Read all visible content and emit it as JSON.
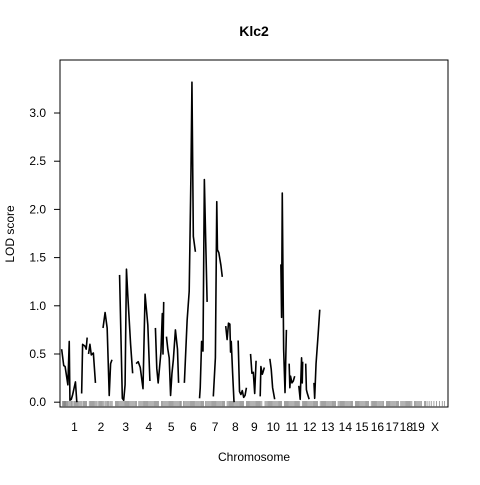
{
  "chart_data": {
    "type": "line",
    "title": "Klc2",
    "xlabel": "Chromosome",
    "ylabel": "LOD score",
    "ylim": [
      -0.05,
      3.55
    ],
    "grid": false,
    "y_ticks": [
      {
        "value": 0.0,
        "label": "0.0"
      },
      {
        "value": 0.5,
        "label": "0.5"
      },
      {
        "value": 1.0,
        "label": "1.0"
      },
      {
        "value": 1.5,
        "label": "1.5"
      },
      {
        "value": 2.0,
        "label": "2.0"
      },
      {
        "value": 2.5,
        "label": "2.5"
      },
      {
        "value": 3.0,
        "label": "3.0"
      }
    ],
    "chromosomes": [
      {
        "name": "1",
        "start": 0,
        "end": 185,
        "label": "1"
      },
      {
        "name": "2",
        "start": 195,
        "end": 375,
        "label": "2"
      },
      {
        "name": "3",
        "start": 385,
        "end": 545,
        "label": "3"
      },
      {
        "name": "4",
        "start": 555,
        "end": 710,
        "label": "4"
      },
      {
        "name": "5",
        "start": 720,
        "end": 870,
        "label": "5"
      },
      {
        "name": "6",
        "start": 880,
        "end": 1030,
        "label": "6"
      },
      {
        "name": "7",
        "start": 1040,
        "end": 1185,
        "label": "7"
      },
      {
        "name": "8",
        "start": 1195,
        "end": 1325,
        "label": "8"
      },
      {
        "name": "9",
        "start": 1335,
        "end": 1460,
        "label": "9"
      },
      {
        "name": "10",
        "start": 1470,
        "end": 1600,
        "label": "10"
      },
      {
        "name": "11",
        "start": 1610,
        "end": 1730,
        "label": "11"
      },
      {
        "name": "12",
        "start": 1740,
        "end": 1860,
        "label": "12"
      },
      {
        "name": "13",
        "start": 1870,
        "end": 1990,
        "label": "13"
      },
      {
        "name": "14",
        "start": 2000,
        "end": 2115,
        "label": "14"
      },
      {
        "name": "15",
        "start": 2125,
        "end": 2230,
        "label": "15"
      },
      {
        "name": "16",
        "start": 2240,
        "end": 2340,
        "label": "16"
      },
      {
        "name": "17",
        "start": 2350,
        "end": 2445,
        "label": "17"
      },
      {
        "name": "18",
        "start": 2455,
        "end": 2545,
        "label": "18"
      },
      {
        "name": "19",
        "start": 2555,
        "end": 2615,
        "label": "19"
      },
      {
        "name": "X",
        "start": 2625,
        "end": 2790,
        "label": "X"
      }
    ],
    "series": [
      {
        "chr": "1",
        "x": [
          0,
          15,
          25,
          45,
          55,
          60,
          70,
          80,
          100,
          110
        ],
        "y": [
          0.55,
          0.38,
          0.37,
          0.18,
          0.63,
          0.02,
          0.03,
          0.08,
          0.21,
          0.0
        ]
      },
      {
        "chr": "1b",
        "x": [
          145,
          152,
          170,
          178,
          185
        ],
        "y": [
          0.09,
          0.6,
          0.58,
          0.55,
          0.67
        ]
      },
      {
        "chr": "2",
        "x": [
          195,
          205,
          215,
          230,
          245
        ],
        "y": [
          0.5,
          0.6,
          0.49,
          0.51,
          0.2
        ]
      },
      {
        "chr": "3",
        "x": [
          300,
          315,
          330,
          345,
          355,
          365
        ],
        "y": [
          0.77,
          0.93,
          0.77,
          0.07,
          0.4,
          0.44
        ]
      },
      {
        "chr": "4",
        "x": [
          420,
          440,
          450,
          460,
          470,
          480,
          500,
          515
        ],
        "y": [
          1.32,
          0.04,
          0.02,
          0.18,
          1.38,
          1.1,
          0.6,
          0.3
        ]
      },
      {
        "chr": "5",
        "x": [
          540,
          555,
          570,
          590,
          605,
          625,
          640
        ],
        "y": [
          0.4,
          0.42,
          0.36,
          0.14,
          1.12,
          0.8,
          0.22
        ]
      },
      {
        "chr": "6",
        "x": [
          680,
          690,
          700,
          720,
          730,
          735,
          740
        ],
        "y": [
          0.77,
          0.35,
          0.2,
          0.52,
          0.92,
          0.5,
          1.04
        ]
      },
      {
        "chr": "7",
        "x": [
          760,
          770,
          780,
          790,
          800,
          810,
          825,
          840,
          848
        ],
        "y": [
          0.68,
          0.55,
          0.46,
          0.07,
          0.3,
          0.44,
          0.75,
          0.55,
          0.2
        ]
      },
      {
        "chr": "8",
        "x": [
          890,
          910,
          925,
          938,
          945,
          955,
          970
        ],
        "y": [
          0.2,
          0.85,
          1.15,
          2.4,
          3.32,
          1.72,
          1.56
        ]
      },
      {
        "chr": "9",
        "x": [
          1000,
          1005,
          1015,
          1025,
          1035,
          1045,
          1055
        ],
        "y": [
          0.04,
          0.15,
          0.63,
          0.53,
          2.31,
          1.66,
          1.04
        ]
      },
      {
        "chr": "10",
        "x": [
          1100,
          1115,
          1125,
          1130,
          1140,
          1155,
          1165
        ],
        "y": [
          0.06,
          0.46,
          2.08,
          1.58,
          1.55,
          1.42,
          1.3
        ]
      },
      {
        "chr": "11",
        "x": [
          1190,
          1200,
          1210,
          1220,
          1225,
          1230,
          1240,
          1250
        ],
        "y": [
          0.79,
          0.65,
          0.82,
          0.81,
          0.52,
          0.63,
          0.3,
          0.0
        ]
      },
      {
        "chr": "12",
        "x": [
          1280,
          1290,
          1300,
          1310,
          1320,
          1330,
          1340
        ],
        "y": [
          0.64,
          0.11,
          0.08,
          0.12,
          0.05,
          0.07,
          0.15
        ]
      },
      {
        "chr": "13",
        "x": [
          1370,
          1380,
          1390,
          1400,
          1410
        ],
        "y": [
          0.5,
          0.3,
          0.31,
          0.09,
          0.43
        ]
      },
      {
        "chr": "14",
        "x": [
          1440,
          1445,
          1455,
          1460,
          1470
        ],
        "y": [
          0.06,
          0.37,
          0.29,
          0.31,
          0.36
        ]
      },
      {
        "chr": "15",
        "x": [
          1510,
          1520,
          1530,
          1545
        ],
        "y": [
          0.45,
          0.34,
          0.15,
          0.03
        ]
      },
      {
        "chr": "16",
        "x": [
          1590,
          1595,
          1600,
          1610,
          1620,
          1630
        ],
        "y": [
          1.43,
          0.88,
          2.17,
          0.55,
          0.1,
          0.75
        ]
      },
      {
        "chr": "17",
        "x": [
          1650,
          1655,
          1660,
          1670,
          1680,
          1690
        ],
        "y": [
          0.4,
          0.15,
          0.27,
          0.2,
          0.22,
          0.27
        ]
      },
      {
        "chr": "18",
        "x": [
          1720,
          1730,
          1740,
          1745,
          1748
        ],
        "y": [
          0.17,
          0.03,
          0.46,
          0.2,
          0.42
        ]
      },
      {
        "chr": "19",
        "x": [
          1770,
          1775,
          1782,
          1795
        ],
        "y": [
          0.4,
          0.13,
          0.09,
          0.03
        ]
      },
      {
        "chr": "X",
        "x": [
          1830,
          1835,
          1845,
          1860,
          1872
        ],
        "y": [
          0.2,
          0.04,
          0.4,
          0.7,
          0.96
        ]
      }
    ],
    "markers": [
      5,
      12,
      18,
      24,
      30,
      37,
      44,
      52,
      60,
      68,
      75,
      83,
      92,
      100,
      108,
      116,
      124,
      132,
      140,
      148,
      157,
      165,
      172,
      180,
      200,
      208,
      215,
      224,
      232,
      240,
      248,
      256,
      265,
      273,
      281,
      290,
      298,
      306,
      315,
      323,
      332,
      340,
      350,
      358,
      366,
      390,
      398,
      406,
      414,
      422,
      430,
      438,
      446,
      454,
      462,
      470,
      478,
      486,
      494,
      502,
      510,
      518,
      526,
      534,
      542,
      560,
      568,
      576,
      584,
      592,
      600,
      608,
      616,
      624,
      632,
      640,
      648,
      656,
      664,
      672,
      680,
      688,
      696,
      704,
      725,
      733,
      741,
      749,
      757,
      765,
      773,
      781,
      789,
      797,
      805,
      813,
      821,
      829,
      837,
      845,
      853,
      861,
      867,
      885,
      893,
      901,
      909,
      917,
      925,
      933,
      941,
      949,
      957,
      965,
      973,
      981,
      989,
      997,
      1005,
      1013,
      1021,
      1028,
      1045,
      1053,
      1061,
      1069,
      1077,
      1085,
      1093,
      1101,
      1109,
      1117,
      1125,
      1133,
      1141,
      1149,
      1157,
      1165,
      1173,
      1181,
      1200,
      1208,
      1216,
      1224,
      1232,
      1240,
      1248,
      1256,
      1264,
      1272,
      1280,
      1288,
      1296,
      1304,
      1312,
      1320,
      1340,
      1348,
      1356,
      1364,
      1372,
      1380,
      1388,
      1396,
      1404,
      1412,
      1420,
      1428,
      1436,
      1444,
      1452,
      1475,
      1483,
      1491,
      1499,
      1507,
      1515,
      1523,
      1531,
      1539,
      1547,
      1555,
      1563,
      1571,
      1579,
      1587,
      1595,
      1615,
      1623,
      1631,
      1639,
      1647,
      1655,
      1663,
      1671,
      1679,
      1687,
      1695,
      1703,
      1711,
      1719,
      1727,
      1745,
      1753,
      1761,
      1769,
      1777,
      1785,
      1793,
      1801,
      1809,
      1817,
      1825,
      1833,
      1841,
      1849,
      1857,
      1875,
      1883,
      1891,
      1899,
      1907,
      1915,
      1923,
      1931,
      1939,
      1947,
      1955,
      1963,
      1971,
      1979,
      1987,
      2005,
      2013,
      2021,
      2029,
      2037,
      2045,
      2053,
      2061,
      2069,
      2077,
      2085,
      2093,
      2101,
      2109,
      2130,
      2138,
      2146,
      2154,
      2162,
      2170,
      2178,
      2186,
      2194,
      2202,
      2210,
      2218,
      2226,
      2245,
      2253,
      2261,
      2269,
      2277,
      2285,
      2293,
      2301,
      2309,
      2317,
      2325,
      2333,
      2355,
      2363,
      2371,
      2379,
      2387,
      2395,
      2403,
      2411,
      2419,
      2427,
      2435,
      2443,
      2460,
      2468,
      2476,
      2484,
      2492,
      2500,
      2508,
      2516,
      2524,
      2532,
      2540,
      2560,
      2568,
      2576,
      2584,
      2592,
      2600,
      2608,
      2630,
      2640,
      2650,
      2665,
      2680,
      2700,
      2720,
      2740,
      2760,
      2775
    ],
    "colors": {
      "line": "#000000",
      "axis": "#000000",
      "background": "#ffffff"
    }
  }
}
